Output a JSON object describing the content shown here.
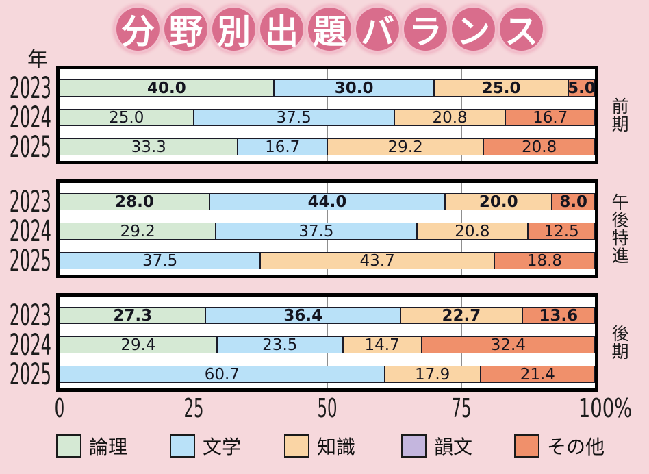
{
  "page": {
    "background": "#F6D8DC"
  },
  "title": {
    "text": "分野別出題バランス",
    "chars": [
      "分",
      "野",
      "別",
      "出",
      "題",
      "バ",
      "ラ",
      "ン",
      "ス"
    ],
    "badge_color": "#D96D8C",
    "ring_color": "#F2C0CD",
    "text_color": "#FFFFFF"
  },
  "axis": {
    "year_label": "年",
    "tick_labels": [
      "0",
      "25",
      "50",
      "75",
      "100%"
    ],
    "tick_values": [
      0,
      25,
      50,
      75,
      100
    ]
  },
  "legend": [
    {
      "label": "論理",
      "color": "#D5E9D4"
    },
    {
      "label": "文学",
      "color": "#B9E1F8"
    },
    {
      "label": "知識",
      "color": "#FAD5A5"
    },
    {
      "label": "韻文",
      "color": "#C4B6DE"
    },
    {
      "label": "その他",
      "color": "#F0906B"
    }
  ],
  "chart_data": {
    "type": "bar",
    "stacked": true,
    "orientation": "horizontal",
    "unit": "percent",
    "xlim": [
      0,
      100
    ],
    "x_ticks": [
      0,
      25,
      50,
      75,
      100
    ],
    "title": "分野別出題バランス",
    "categories": [
      "論理",
      "文学",
      "知識",
      "韻文",
      "その他"
    ],
    "category_colors": {
      "論理": "#D5E9D4",
      "文学": "#B9E1F8",
      "知識": "#FAD5A5",
      "韻文": "#C4B6DE",
      "その他": "#F0906B"
    },
    "groups": [
      {
        "name": "前期",
        "rows": [
          {
            "year": "2023",
            "bold": true,
            "segments": [
              {
                "category": "論理",
                "value": 40.0
              },
              {
                "category": "文学",
                "value": 30.0
              },
              {
                "category": "知識",
                "value": 25.0
              },
              {
                "category": "その他",
                "value": 5.0
              }
            ]
          },
          {
            "year": "2024",
            "bold": false,
            "segments": [
              {
                "category": "論理",
                "value": 25.0
              },
              {
                "category": "文学",
                "value": 37.5
              },
              {
                "category": "知識",
                "value": 20.8
              },
              {
                "category": "その他",
                "value": 16.7
              }
            ]
          },
          {
            "year": "2025",
            "bold": false,
            "segments": [
              {
                "category": "論理",
                "value": 33.3
              },
              {
                "category": "文学",
                "value": 16.7
              },
              {
                "category": "知識",
                "value": 29.2
              },
              {
                "category": "その他",
                "value": 20.8
              }
            ]
          }
        ]
      },
      {
        "name": "午後特進",
        "rows": [
          {
            "year": "2023",
            "bold": true,
            "segments": [
              {
                "category": "論理",
                "value": 28.0
              },
              {
                "category": "文学",
                "value": 44.0
              },
              {
                "category": "知識",
                "value": 20.0
              },
              {
                "category": "その他",
                "value": 8.0
              }
            ]
          },
          {
            "year": "2024",
            "bold": false,
            "segments": [
              {
                "category": "論理",
                "value": 29.2
              },
              {
                "category": "文学",
                "value": 37.5
              },
              {
                "category": "知識",
                "value": 20.8
              },
              {
                "category": "その他",
                "value": 12.5
              }
            ]
          },
          {
            "year": "2025",
            "bold": false,
            "segments": [
              {
                "category": "文学",
                "value": 37.5
              },
              {
                "category": "知識",
                "value": 43.7
              },
              {
                "category": "その他",
                "value": 18.8
              }
            ]
          }
        ]
      },
      {
        "name": "後期",
        "rows": [
          {
            "year": "2023",
            "bold": true,
            "segments": [
              {
                "category": "論理",
                "value": 27.3
              },
              {
                "category": "文学",
                "value": 36.4
              },
              {
                "category": "知識",
                "value": 22.7
              },
              {
                "category": "その他",
                "value": 13.6
              }
            ]
          },
          {
            "year": "2024",
            "bold": false,
            "segments": [
              {
                "category": "論理",
                "value": 29.4
              },
              {
                "category": "文学",
                "value": 23.5
              },
              {
                "category": "知識",
                "value": 14.7
              },
              {
                "category": "その他",
                "value": 32.4
              }
            ]
          },
          {
            "year": "2025",
            "bold": false,
            "segments": [
              {
                "category": "文学",
                "value": 60.7
              },
              {
                "category": "知識",
                "value": 17.9
              },
              {
                "category": "その他",
                "value": 21.4
              }
            ]
          }
        ]
      }
    ]
  }
}
